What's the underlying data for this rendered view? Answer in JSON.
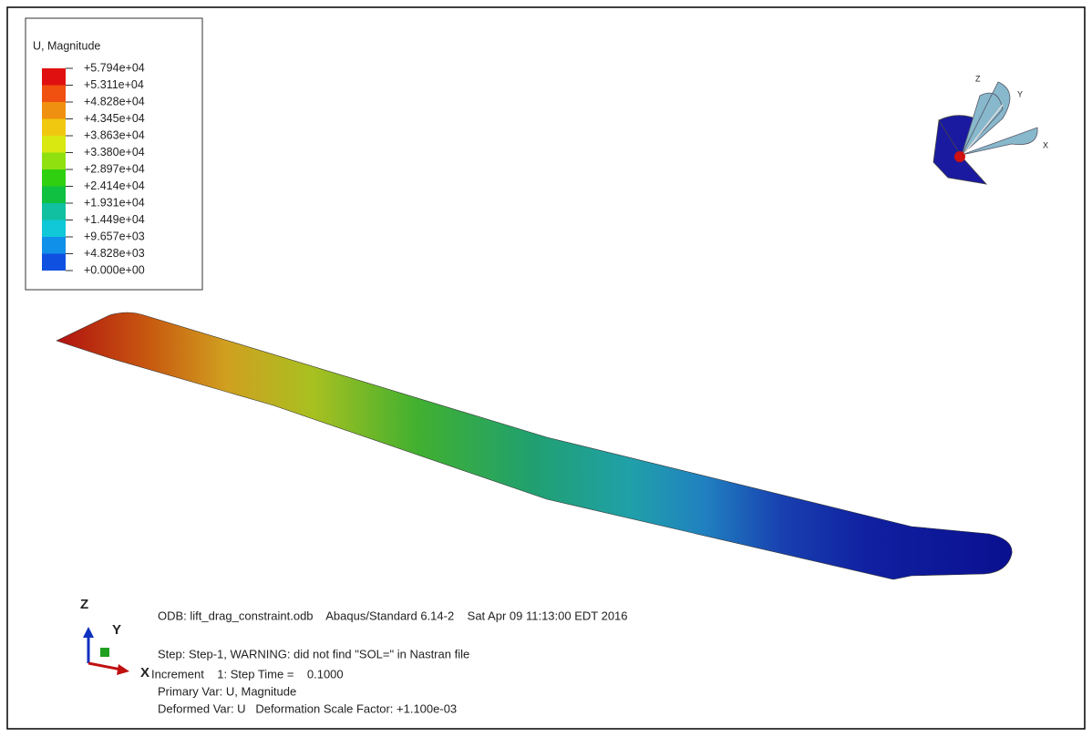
{
  "legend": {
    "title": "U, Magnitude",
    "labels": [
      "+5.794e+04",
      "+5.311e+04",
      "+4.828e+04",
      "+4.345e+04",
      "+3.863e+04",
      "+3.380e+04",
      "+2.897e+04",
      "+2.414e+04",
      "+1.931e+04",
      "+1.449e+04",
      "+9.657e+03",
      "+4.828e+03",
      "+0.000e+00"
    ]
  },
  "info": {
    "odb": "ODB: lift_drag_constraint.odb    Abaqus/Standard 6.14-2    Sat Apr 09 11:13:00 EDT 2016",
    "step": "Step: Step-1, WARNING: did not find \"SOL=\" in Nastran file",
    "increment": "Increment    1: Step Time =    0.1000",
    "primary": "Primary Var: U, Magnitude",
    "deformed": "Deformed Var: U   Deformation Scale Factor: +1.100e-03"
  },
  "triad": {
    "z": "Z",
    "y": "Y",
    "x": "X"
  },
  "view_triad": {
    "z": "Z",
    "y": "Y",
    "x": "X"
  }
}
